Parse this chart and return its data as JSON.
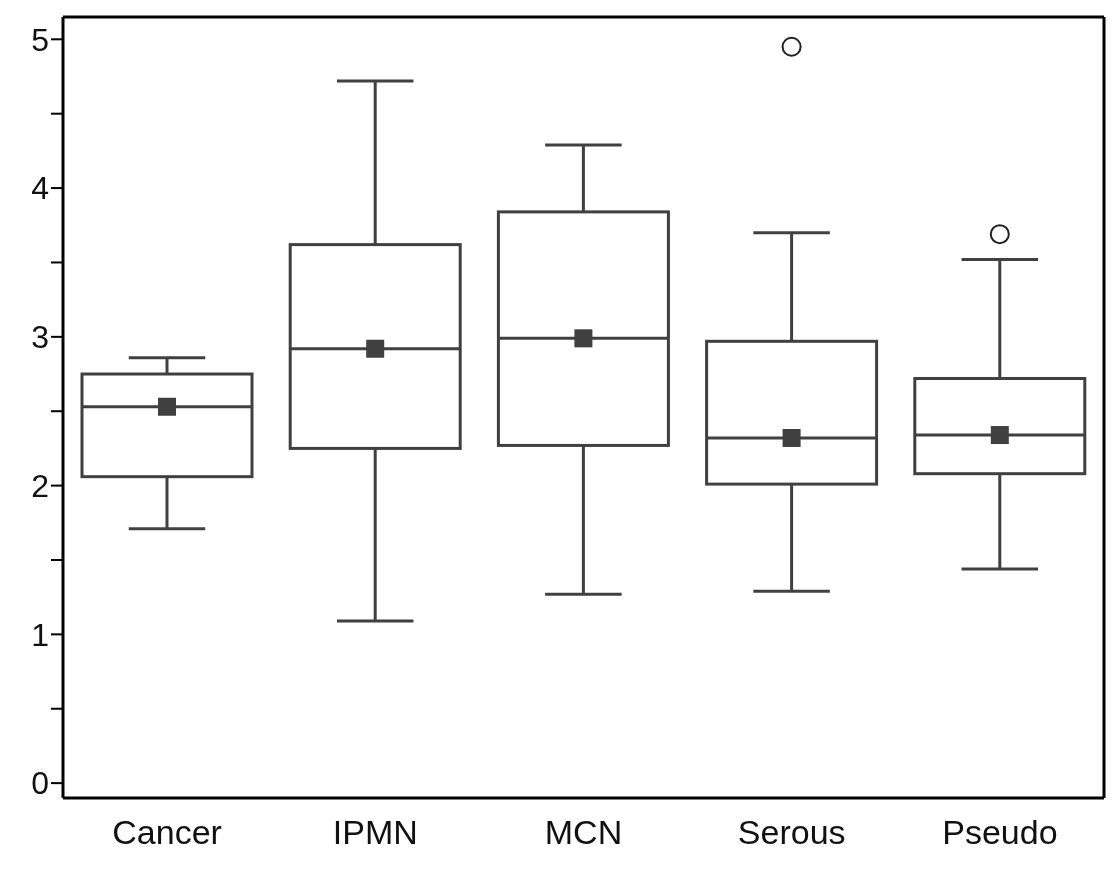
{
  "chart_data": {
    "type": "box",
    "categories": [
      "Cancer",
      "IPMN",
      "MCN",
      "Serous",
      "Pseudo"
    ],
    "color": "#404040",
    "marker": "square",
    "boxes": [
      {
        "low": 1.71,
        "q1": 2.06,
        "median": 2.53,
        "q3": 2.75,
        "high": 2.86,
        "mean": 2.53
      },
      {
        "low": 1.09,
        "q1": 2.25,
        "median": 2.92,
        "q3": 3.62,
        "high": 4.72,
        "mean": 2.92
      },
      {
        "low": 1.27,
        "q1": 2.27,
        "median": 2.99,
        "q3": 3.84,
        "high": 4.29,
        "mean": 2.99
      },
      {
        "low": 1.29,
        "q1": 2.01,
        "median": 2.32,
        "q3": 2.97,
        "high": 3.7,
        "mean": 2.32,
        "outliers": [
          4.95
        ]
      },
      {
        "low": 1.44,
        "q1": 2.08,
        "median": 2.34,
        "q3": 2.72,
        "high": 3.52,
        "mean": 2.34,
        "outliers": [
          3.69
        ]
      }
    ],
    "ylim": [
      -0.1,
      5.15
    ],
    "yticks": [
      0,
      {
        "value": 0.5,
        "label": null
      },
      1,
      {
        "value": 1.5,
        "label": null
      },
      2,
      {
        "value": 2.5,
        "label": null
      },
      3,
      {
        "value": 3.5,
        "label": null
      },
      4,
      {
        "value": 4.5,
        "label": null
      },
      5
    ]
  }
}
